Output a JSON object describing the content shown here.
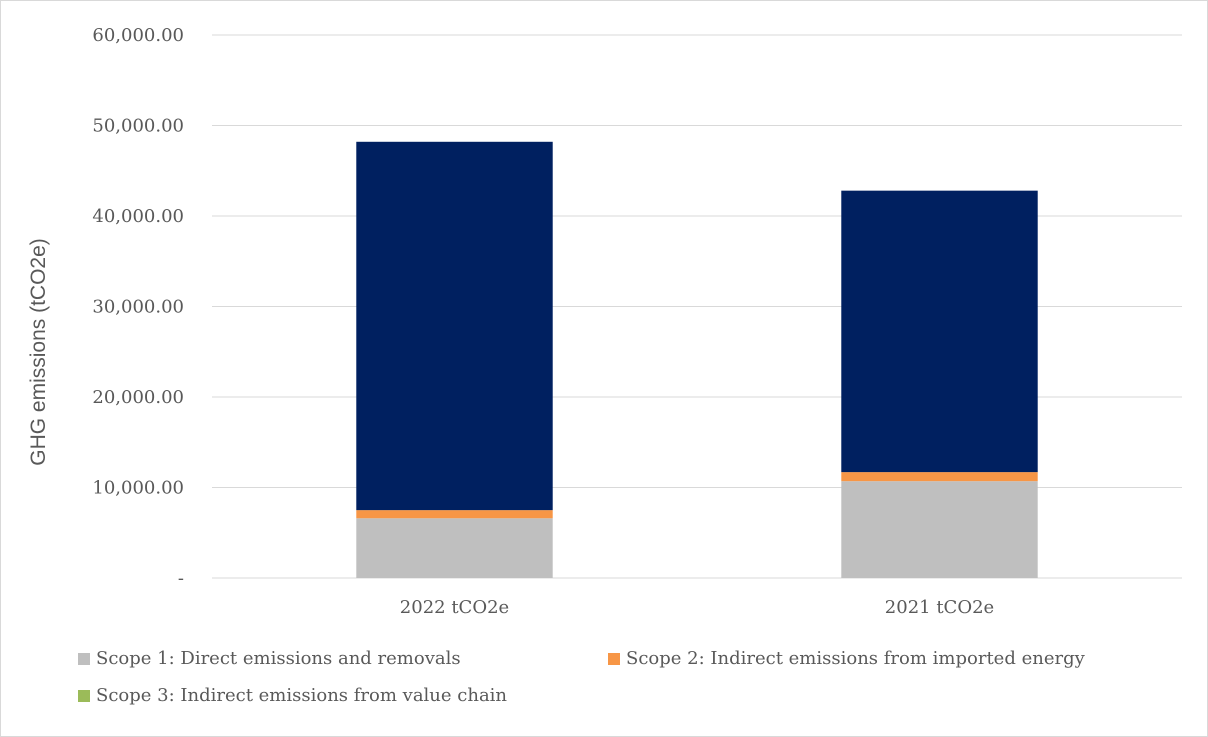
{
  "chart_data": {
    "type": "bar",
    "stacked": true,
    "title": "",
    "xlabel": "",
    "ylabel": "GHG emissions (tCO2e)",
    "categories": [
      "2022 tCO2e",
      "2021 tCO2e"
    ],
    "ylim": [
      0,
      60000
    ],
    "yticks": [
      0,
      10000,
      20000,
      30000,
      40000,
      50000,
      60000
    ],
    "ytick_labels": [
      "-",
      "10,000.00",
      "20,000.00",
      "30,000.00",
      "40,000.00",
      "50,000.00",
      "60,000.00"
    ],
    "grid": true,
    "legend_position": "bottom",
    "series": [
      {
        "name": "Scope 1: Direct emissions and removals",
        "color": "#bfbfbf",
        "values": [
          6600,
          10700
        ]
      },
      {
        "name": "Scope 2: Indirect emissions from imported energy",
        "color": "#f79646",
        "values": [
          900,
          1000
        ]
      },
      {
        "name": "Scope 3: Indirect emissions from value chain",
        "color": "#9bbb59",
        "values": [
          0,
          0
        ]
      },
      {
        "name": "",
        "color": "#002060",
        "values": [
          40700,
          31100
        ]
      }
    ]
  }
}
